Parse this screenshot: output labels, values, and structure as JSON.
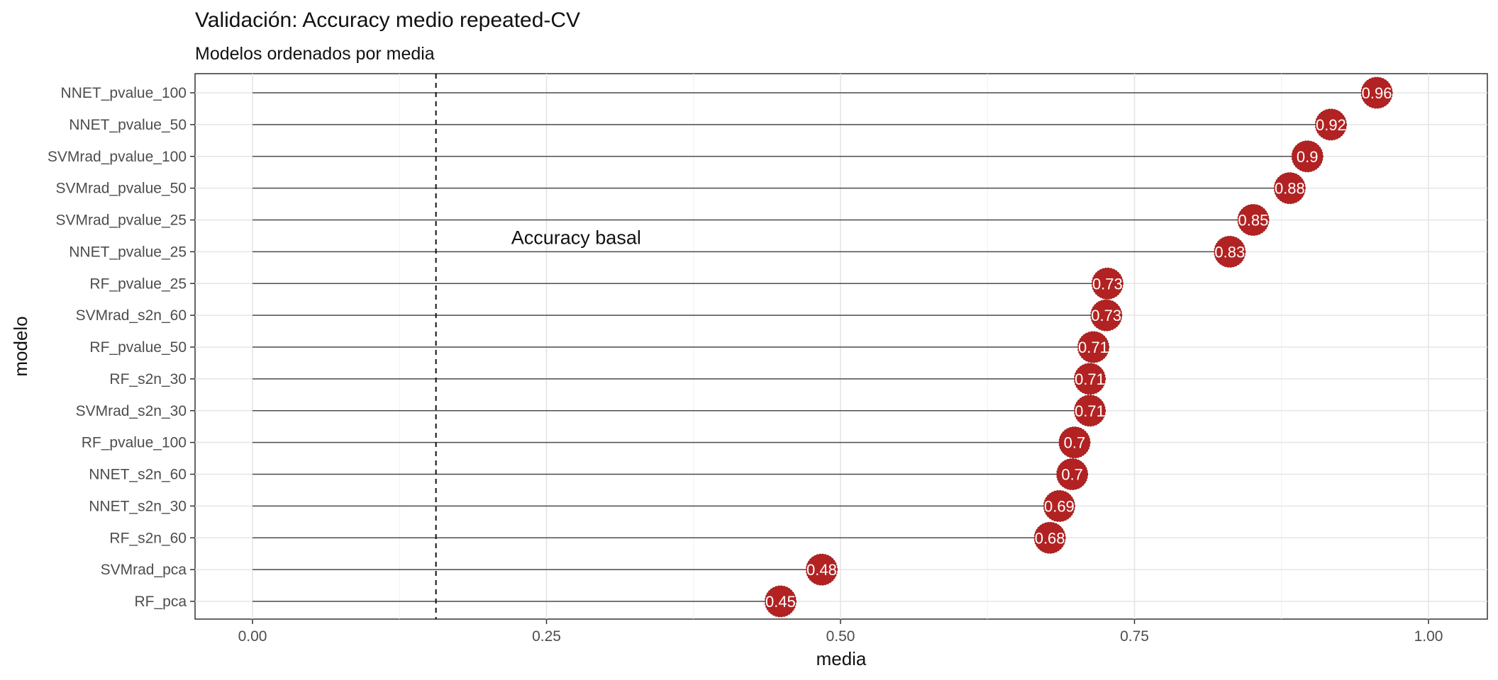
{
  "chart_data": {
    "type": "lollipop",
    "title": "Validación: Accuracy medio repeated-CV",
    "subtitle": "Modelos ordenados por media",
    "xlabel": "media",
    "ylabel": "modelo",
    "xlim": [
      0,
      1
    ],
    "x_ticks": [
      0.0,
      0.25,
      0.5,
      0.75,
      1.0
    ],
    "x_tick_labels": [
      "0.00",
      "0.25",
      "0.50",
      "0.75",
      "1.00"
    ],
    "grid": true,
    "reference_line": {
      "x": 0.156,
      "style": "dashed",
      "label": "Accuracy basal",
      "label_x": 0.22
    },
    "point_color": "#b22222",
    "categories": [
      "NNET_pvalue_100",
      "NNET_pvalue_50",
      "SVMrad_pvalue_100",
      "SVMrad_pvalue_50",
      "SVMrad_pvalue_25",
      "NNET_pvalue_25",
      "RF_pvalue_25",
      "SVMrad_s2n_60",
      "RF_pvalue_50",
      "RF_s2n_30",
      "SVMrad_s2n_30",
      "RF_pvalue_100",
      "NNET_s2n_60",
      "NNET_s2n_30",
      "RF_s2n_60",
      "SVMrad_pca",
      "RF_pca"
    ],
    "values": [
      0.956,
      0.917,
      0.897,
      0.882,
      0.851,
      0.831,
      0.727,
      0.726,
      0.715,
      0.712,
      0.712,
      0.699,
      0.697,
      0.686,
      0.678,
      0.484,
      0.449
    ],
    "labels": [
      "0.96",
      "0.92",
      "0.9",
      "0.88",
      "0.85",
      "0.83",
      "0.73",
      "0.73",
      "0.71",
      "0.71",
      "0.71",
      "0.7",
      "0.7",
      "0.69",
      "0.68",
      "0.48",
      "0.45"
    ]
  }
}
